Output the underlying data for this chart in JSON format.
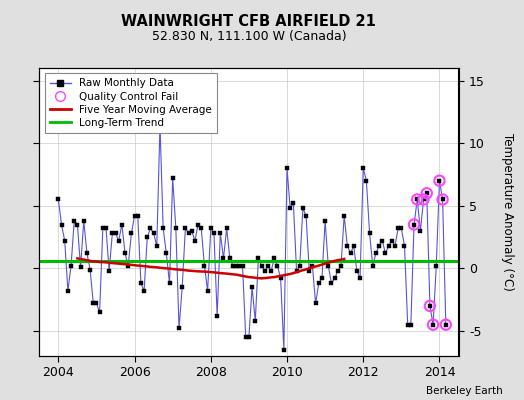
{
  "title": "WAINWRIGHT CFB AIRFIELD 21",
  "subtitle": "52.830 N, 111.100 W (Canada)",
  "ylabel": "Temperature Anomaly (°C)",
  "credit": "Berkeley Earth",
  "xlim": [
    2003.5,
    2014.5
  ],
  "ylim": [
    -7,
    16
  ],
  "yticks": [
    -5,
    0,
    5,
    10,
    15
  ],
  "xticks": [
    2004,
    2006,
    2008,
    2010,
    2012,
    2014
  ],
  "bg_color": "#e0e0e0",
  "plot_bg_color": "#ffffff",
  "raw_color": "#5555dd",
  "ma_color": "#cc0000",
  "trend_color": "#00bb00",
  "qc_color": "#ff44ff",
  "trend_y": 0.55,
  "raw_data": [
    [
      2004.0,
      5.5
    ],
    [
      2004.083,
      3.5
    ],
    [
      2004.167,
      2.2
    ],
    [
      2004.25,
      -1.8
    ],
    [
      2004.333,
      0.2
    ],
    [
      2004.417,
      3.8
    ],
    [
      2004.5,
      3.5
    ],
    [
      2004.583,
      0.1
    ],
    [
      2004.667,
      3.8
    ],
    [
      2004.75,
      1.2
    ],
    [
      2004.833,
      -0.1
    ],
    [
      2004.917,
      -2.8
    ],
    [
      2005.0,
      -2.8
    ],
    [
      2005.083,
      -3.5
    ],
    [
      2005.167,
      3.2
    ],
    [
      2005.25,
      3.2
    ],
    [
      2005.333,
      -0.2
    ],
    [
      2005.417,
      2.8
    ],
    [
      2005.5,
      2.8
    ],
    [
      2005.583,
      2.2
    ],
    [
      2005.667,
      3.5
    ],
    [
      2005.75,
      1.2
    ],
    [
      2005.833,
      0.2
    ],
    [
      2005.917,
      2.8
    ],
    [
      2006.0,
      4.2
    ],
    [
      2006.083,
      4.2
    ],
    [
      2006.167,
      -1.2
    ],
    [
      2006.25,
      -1.8
    ],
    [
      2006.333,
      2.5
    ],
    [
      2006.417,
      3.2
    ],
    [
      2006.5,
      2.8
    ],
    [
      2006.583,
      1.8
    ],
    [
      2006.667,
      11.5
    ],
    [
      2006.75,
      3.2
    ],
    [
      2006.833,
      1.2
    ],
    [
      2006.917,
      -1.2
    ],
    [
      2007.0,
      7.2
    ],
    [
      2007.083,
      3.2
    ],
    [
      2007.167,
      -4.8
    ],
    [
      2007.25,
      -1.5
    ],
    [
      2007.333,
      3.2
    ],
    [
      2007.417,
      2.8
    ],
    [
      2007.5,
      3.0
    ],
    [
      2007.583,
      2.2
    ],
    [
      2007.667,
      3.5
    ],
    [
      2007.75,
      3.2
    ],
    [
      2007.833,
      0.2
    ],
    [
      2007.917,
      -1.8
    ],
    [
      2008.0,
      3.2
    ],
    [
      2008.083,
      2.8
    ],
    [
      2008.167,
      -3.8
    ],
    [
      2008.25,
      2.8
    ],
    [
      2008.333,
      0.8
    ],
    [
      2008.417,
      3.2
    ],
    [
      2008.5,
      0.8
    ],
    [
      2008.583,
      0.2
    ],
    [
      2008.667,
      0.2
    ],
    [
      2008.75,
      0.2
    ],
    [
      2008.833,
      0.2
    ],
    [
      2008.917,
      -5.5
    ],
    [
      2009.0,
      -5.5
    ],
    [
      2009.083,
      -1.5
    ],
    [
      2009.167,
      -4.2
    ],
    [
      2009.25,
      0.8
    ],
    [
      2009.333,
      0.2
    ],
    [
      2009.417,
      -0.2
    ],
    [
      2009.5,
      0.2
    ],
    [
      2009.583,
      -0.2
    ],
    [
      2009.667,
      0.8
    ],
    [
      2009.75,
      0.2
    ],
    [
      2009.833,
      -0.8
    ],
    [
      2009.917,
      -6.5
    ],
    [
      2010.0,
      8.0
    ],
    [
      2010.083,
      4.8
    ],
    [
      2010.167,
      5.2
    ],
    [
      2010.25,
      -0.2
    ],
    [
      2010.333,
      0.2
    ],
    [
      2010.417,
      4.8
    ],
    [
      2010.5,
      4.2
    ],
    [
      2010.583,
      -0.2
    ],
    [
      2010.667,
      0.2
    ],
    [
      2010.75,
      -2.8
    ],
    [
      2010.833,
      -1.2
    ],
    [
      2010.917,
      -0.8
    ],
    [
      2011.0,
      3.8
    ],
    [
      2011.083,
      0.2
    ],
    [
      2011.167,
      -1.2
    ],
    [
      2011.25,
      -0.8
    ],
    [
      2011.333,
      -0.2
    ],
    [
      2011.417,
      0.2
    ],
    [
      2011.5,
      4.2
    ],
    [
      2011.583,
      1.8
    ],
    [
      2011.667,
      1.2
    ],
    [
      2011.75,
      1.8
    ],
    [
      2011.833,
      -0.2
    ],
    [
      2011.917,
      -0.8
    ],
    [
      2012.0,
      8.0
    ],
    [
      2012.083,
      7.0
    ],
    [
      2012.167,
      2.8
    ],
    [
      2012.25,
      0.2
    ],
    [
      2012.333,
      1.2
    ],
    [
      2012.417,
      1.8
    ],
    [
      2012.5,
      2.2
    ],
    [
      2012.583,
      1.2
    ],
    [
      2012.667,
      1.8
    ],
    [
      2012.75,
      2.2
    ],
    [
      2012.833,
      1.8
    ],
    [
      2012.917,
      3.2
    ],
    [
      2013.0,
      3.2
    ],
    [
      2013.083,
      1.8
    ],
    [
      2013.167,
      -4.5
    ],
    [
      2013.25,
      -4.5
    ],
    [
      2013.333,
      3.5
    ],
    [
      2013.417,
      5.5
    ],
    [
      2013.5,
      3.0
    ],
    [
      2013.583,
      5.5
    ],
    [
      2013.667,
      6.0
    ],
    [
      2013.75,
      -3.0
    ],
    [
      2013.833,
      -4.5
    ],
    [
      2013.917,
      0.2
    ],
    [
      2014.0,
      7.0
    ],
    [
      2014.083,
      5.5
    ],
    [
      2014.167,
      -4.5
    ]
  ],
  "ma_data": [
    [
      2004.5,
      0.8
    ],
    [
      2004.583,
      0.75
    ],
    [
      2004.667,
      0.7
    ],
    [
      2004.75,
      0.65
    ],
    [
      2004.833,
      0.6
    ],
    [
      2004.917,
      0.55
    ],
    [
      2005.0,
      0.55
    ],
    [
      2005.083,
      0.5
    ],
    [
      2005.167,
      0.5
    ],
    [
      2005.25,
      0.48
    ],
    [
      2005.333,
      0.45
    ],
    [
      2005.417,
      0.42
    ],
    [
      2005.5,
      0.4
    ],
    [
      2005.583,
      0.38
    ],
    [
      2005.667,
      0.35
    ],
    [
      2005.75,
      0.33
    ],
    [
      2005.833,
      0.3
    ],
    [
      2005.917,
      0.28
    ],
    [
      2006.0,
      0.25
    ],
    [
      2006.083,
      0.22
    ],
    [
      2006.167,
      0.2
    ],
    [
      2006.25,
      0.18
    ],
    [
      2006.333,
      0.15
    ],
    [
      2006.417,
      0.12
    ],
    [
      2006.5,
      0.1
    ],
    [
      2006.583,
      0.08
    ],
    [
      2006.667,
      0.05
    ],
    [
      2006.75,
      0.02
    ],
    [
      2006.833,
      0.0
    ],
    [
      2006.917,
      -0.02
    ],
    [
      2007.0,
      -0.05
    ],
    [
      2007.083,
      -0.08
    ],
    [
      2007.167,
      -0.1
    ],
    [
      2007.25,
      -0.12
    ],
    [
      2007.333,
      -0.15
    ],
    [
      2007.417,
      -0.18
    ],
    [
      2007.5,
      -0.2
    ],
    [
      2007.583,
      -0.22
    ],
    [
      2007.667,
      -0.24
    ],
    [
      2007.75,
      -0.25
    ],
    [
      2007.833,
      -0.26
    ],
    [
      2007.917,
      -0.28
    ],
    [
      2008.0,
      -0.3
    ],
    [
      2008.083,
      -0.32
    ],
    [
      2008.167,
      -0.35
    ],
    [
      2008.25,
      -0.38
    ],
    [
      2008.333,
      -0.4
    ],
    [
      2008.417,
      -0.42
    ],
    [
      2008.5,
      -0.45
    ],
    [
      2008.583,
      -0.48
    ],
    [
      2008.667,
      -0.5
    ],
    [
      2008.75,
      -0.55
    ],
    [
      2008.833,
      -0.6
    ],
    [
      2008.917,
      -0.65
    ],
    [
      2009.0,
      -0.7
    ],
    [
      2009.083,
      -0.72
    ],
    [
      2009.167,
      -0.75
    ],
    [
      2009.25,
      -0.78
    ],
    [
      2009.333,
      -0.8
    ],
    [
      2009.417,
      -0.78
    ],
    [
      2009.5,
      -0.75
    ],
    [
      2009.583,
      -0.72
    ],
    [
      2009.667,
      -0.7
    ],
    [
      2009.75,
      -0.65
    ],
    [
      2009.833,
      -0.6
    ],
    [
      2009.917,
      -0.55
    ],
    [
      2010.0,
      -0.5
    ],
    [
      2010.083,
      -0.45
    ],
    [
      2010.167,
      -0.38
    ],
    [
      2010.25,
      -0.3
    ],
    [
      2010.333,
      -0.22
    ],
    [
      2010.417,
      -0.15
    ],
    [
      2010.5,
      -0.08
    ],
    [
      2010.583,
      0.0
    ],
    [
      2010.667,
      0.08
    ],
    [
      2010.75,
      0.15
    ],
    [
      2010.833,
      0.22
    ],
    [
      2010.917,
      0.3
    ],
    [
      2011.0,
      0.38
    ],
    [
      2011.083,
      0.45
    ],
    [
      2011.167,
      0.52
    ],
    [
      2011.25,
      0.6
    ],
    [
      2011.333,
      0.65
    ],
    [
      2011.417,
      0.7
    ],
    [
      2011.5,
      0.75
    ]
  ],
  "qc_points": [
    [
      2013.333,
      3.5
    ],
    [
      2013.417,
      5.5
    ],
    [
      2013.583,
      5.5
    ],
    [
      2013.667,
      6.0
    ],
    [
      2013.75,
      -3.0
    ],
    [
      2013.833,
      -4.5
    ],
    [
      2014.0,
      7.0
    ],
    [
      2014.083,
      5.5
    ],
    [
      2014.167,
      -4.5
    ]
  ]
}
